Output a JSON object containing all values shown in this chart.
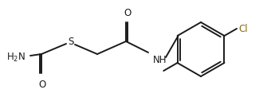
{
  "bg_color": "#ffffff",
  "line_color": "#1a1a1a",
  "cl_color": "#8B6914",
  "bond_width": 1.4,
  "font_size": 8.5,
  "fig_width": 3.45,
  "fig_height": 1.32,
  "dpi": 100,
  "xlim": [
    0,
    345
  ],
  "ylim": [
    0,
    132
  ],
  "h2n_x": 8,
  "h2n_y": 72,
  "c1x": 52,
  "c1y": 68,
  "o1x": 52,
  "o1y": 92,
  "sx": 88,
  "sy": 52,
  "ch2x": 122,
  "ch2y": 68,
  "c2x": 158,
  "c2y": 52,
  "o2x": 158,
  "o2y": 28,
  "nhx": 192,
  "nhy": 68,
  "rcx": 252,
  "rcy": 62,
  "ring_r": 34
}
